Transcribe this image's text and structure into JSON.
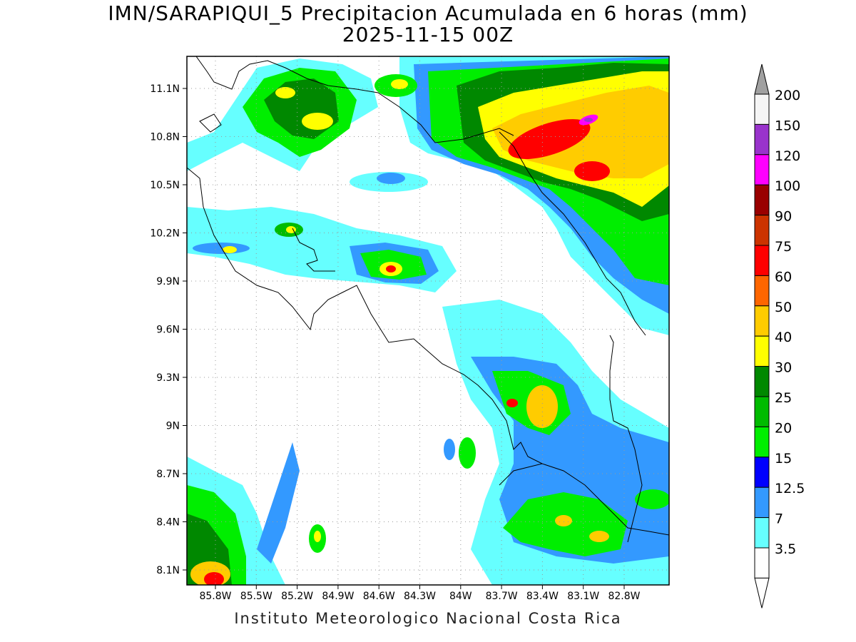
{
  "title": {
    "line1": "IMN/SARAPIQUI_5 Precipitacion Acumulada en 6 horas (mm)",
    "line2": "2025-11-15 00Z"
  },
  "footer": "Instituto Meteorologico Nacional Costa Rica",
  "map": {
    "lat_ticks": [
      "11.1N",
      "10.8N",
      "10.5N",
      "10.2N",
      "9.9N",
      "9.6N",
      "9.3N",
      "9N",
      "8.7N",
      "8.4N",
      "8.1N"
    ],
    "lon_ticks": [
      "85.8W",
      "85.5W",
      "85.2W",
      "84.9W",
      "84.6W",
      "84.3W",
      "84W",
      "83.7W",
      "83.4W",
      "83.1W",
      "82.8W"
    ],
    "grid": "dotted"
  },
  "legend": {
    "top_color": "#a0a0a0",
    "bottom_color": "#ffffff",
    "bins": [
      {
        "label": "200",
        "color": "#f5f5f5"
      },
      {
        "label": "150",
        "color": "#9933cc"
      },
      {
        "label": "120",
        "color": "#ff00ff"
      },
      {
        "label": "100",
        "color": "#990000"
      },
      {
        "label": "90",
        "color": "#cc3300"
      },
      {
        "label": "75",
        "color": "#ff0000"
      },
      {
        "label": "60",
        "color": "#ff6600"
      },
      {
        "label": "50",
        "color": "#ffcc00"
      },
      {
        "label": "40",
        "color": "#ffff00"
      },
      {
        "label": "30",
        "color": "#008800"
      },
      {
        "label": "25",
        "color": "#00bb00"
      },
      {
        "label": "20",
        "color": "#00ee00"
      },
      {
        "label": "15",
        "color": "#0000ff"
      },
      {
        "label": "12.5",
        "color": "#3399ff"
      },
      {
        "label": "7",
        "color": "#66ffff"
      },
      {
        "label": "3.5",
        "color": "#ffffff"
      }
    ]
  }
}
